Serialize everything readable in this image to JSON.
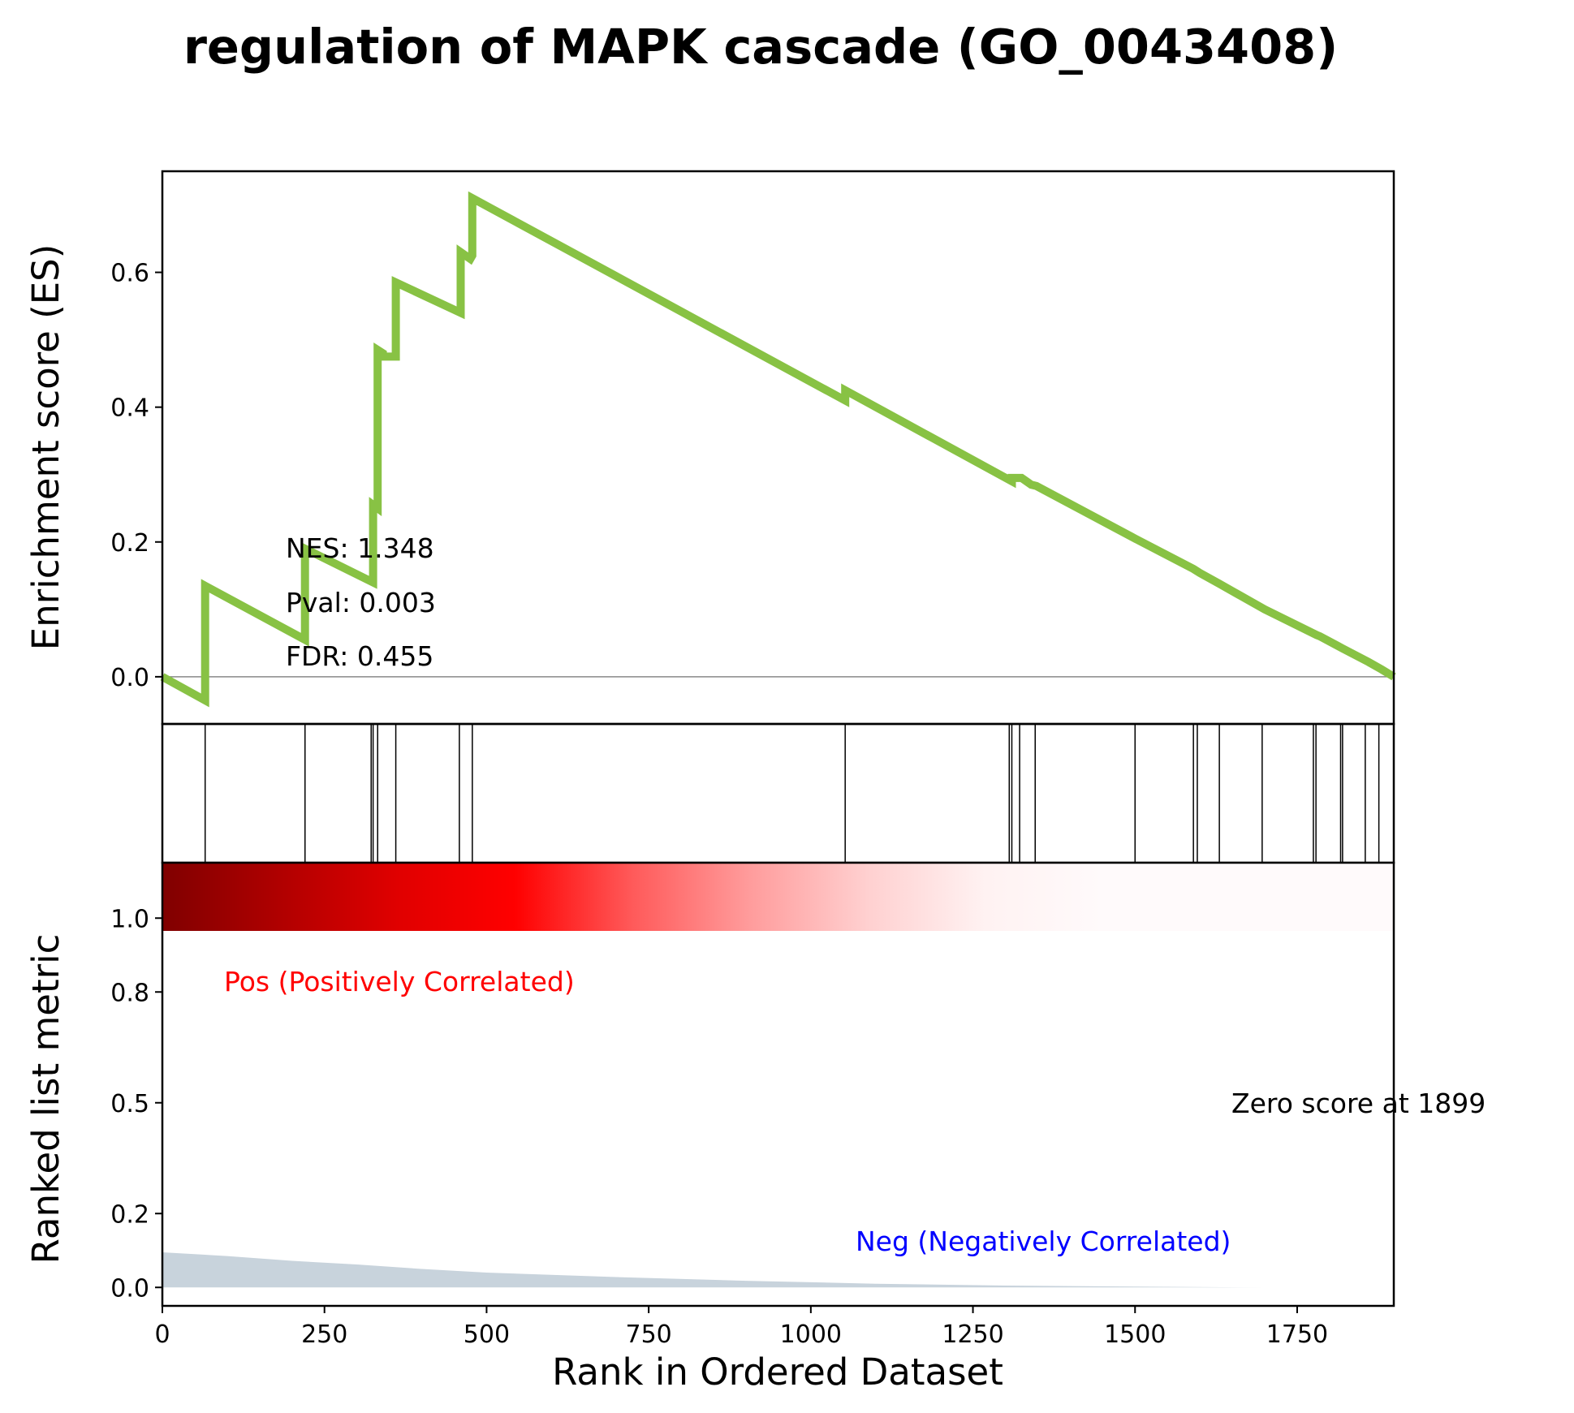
{
  "chart_data": {
    "type": "line",
    "title": "regulation of MAPK cascade (GO_0043408)",
    "xlabel": "Rank in Ordered Dataset",
    "ylabel_top": "Enrichment score (ES)",
    "ylabel_bottom": "Ranked list metric",
    "xlim": [
      0,
      1899
    ],
    "ylim_es": [
      -0.07,
      0.75
    ],
    "ylim_metric": [
      -0.05,
      1.15
    ],
    "x_ticks": [
      0,
      250,
      500,
      750,
      1000,
      1250,
      1500,
      1750
    ],
    "es_ticks": [
      0.0,
      0.2,
      0.4,
      0.6
    ],
    "es_tick_labels": [
      "0.0",
      "0.2",
      "0.4",
      "0.6"
    ],
    "metric_ticks": [
      0.0,
      0.2,
      0.5,
      0.8,
      1.0
    ],
    "metric_tick_labels": [
      "0.0",
      "0.2",
      "0.5",
      "0.8",
      "1.0"
    ],
    "series": [
      {
        "type": "line",
        "color": "#88c244",
        "x": [
          0,
          66,
          66,
          220,
          220,
          325,
          325,
          332,
          332,
          340,
          340,
          360,
          360,
          460,
          460,
          475,
          475,
          478,
          478,
          1053,
          1053,
          1310,
          1310,
          1318,
          1318,
          1325,
          1325,
          1340,
          1340,
          1348,
          1348,
          1500,
          1500,
          1590,
          1590,
          1600,
          1600,
          1630,
          1630,
          1700,
          1700,
          1780,
          1780,
          1785,
          1785,
          1820,
          1820,
          1860,
          1860,
          1880,
          1880,
          1899
        ],
        "y": [
          0.0,
          -0.035,
          0.135,
          0.055,
          0.19,
          0.14,
          0.255,
          0.25,
          0.485,
          0.48,
          0.475,
          0.475,
          0.585,
          0.54,
          0.63,
          0.62,
          0.62,
          0.625,
          0.71,
          0.41,
          0.425,
          0.29,
          0.295,
          0.295,
          0.295,
          0.295,
          0.295,
          0.285,
          0.285,
          0.283,
          0.283,
          0.205,
          0.205,
          0.16,
          0.16,
          0.154,
          0.154,
          0.138,
          0.138,
          0.1,
          0.1,
          0.062,
          0.062,
          0.06,
          0.06,
          0.042,
          0.042,
          0.022,
          0.022,
          0.011,
          0.011,
          0.0
        ]
      }
    ],
    "hits": [
      66,
      220,
      322,
      325,
      332,
      360,
      458,
      478,
      1053,
      1306,
      1310,
      1322,
      1346,
      1500,
      1590,
      1596,
      1630,
      1696,
      1775,
      1779,
      1817,
      1820,
      1855,
      1876
    ],
    "metric_area": {
      "color": "#c8d3dc",
      "x": [
        0,
        100,
        200,
        300,
        400,
        500,
        700,
        900,
        1100,
        1300,
        1500,
        1700,
        1899
      ],
      "y": [
        0.095,
        0.085,
        0.072,
        0.062,
        0.05,
        0.04,
        0.028,
        0.018,
        0.01,
        0.005,
        0.002,
        0.0,
        0.0
      ]
    },
    "heatmap": {
      "stops": [
        "#800000",
        "#b00000",
        "#e00000",
        "#ff0000",
        "#ff5a5a",
        "#ff9c9c",
        "#ffd0d0",
        "#fff2f2",
        "#fffafb"
      ],
      "fade_end_x": 1450
    },
    "annotations": {
      "nes": "NES: 1.348",
      "pval": "Pval: 0.003",
      "fdr": "FDR: 0.455",
      "pos": "Pos (Positively Correlated)",
      "neg": "Neg (Negatively Correlated)",
      "zero": "Zero score at 1899"
    },
    "colors": {
      "pos": "#ff0000",
      "neg": "#0000ff"
    }
  }
}
